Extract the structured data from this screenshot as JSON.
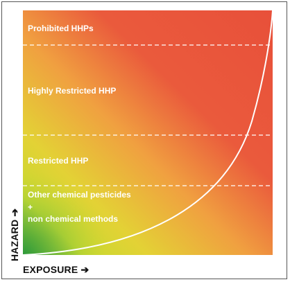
{
  "zones": [
    {
      "label": "Prohibited HHPs"
    },
    {
      "label": "Highly Restricted HHP"
    },
    {
      "label": "Restricted HHP"
    },
    {
      "label_lines": [
        "Other chemical pesticides",
        "+",
        "non chemical methods"
      ]
    }
  ],
  "axes": {
    "x_label": "EXPOSURE",
    "y_label": "HAZARD",
    "arrow": "➔"
  },
  "colors": {
    "high": "#e8503a",
    "mid": "#f0a040",
    "low_mid": "#d8d830",
    "low": "#2e9a3a",
    "boundary_lines": "#ffffff",
    "curve": "#ffffff"
  }
}
